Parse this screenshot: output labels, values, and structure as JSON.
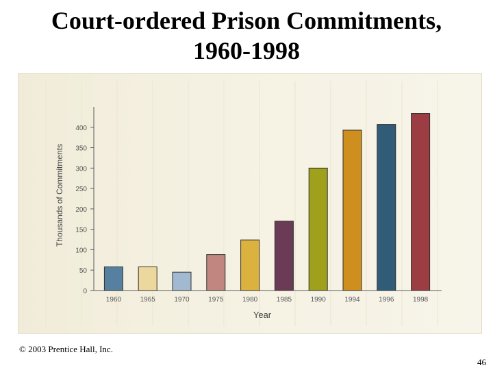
{
  "slide": {
    "title_line1": "Court-ordered Prison Commitments,",
    "title_line2": "1960-1998",
    "copyright": "© 2003 Prentice Hall, Inc.",
    "page_number": "46"
  },
  "chart_data": {
    "type": "bar",
    "title": "Court-ordered Prison Commitments, 1960-1998",
    "xlabel": "Year",
    "ylabel": "Thousands of Commitments",
    "categories": [
      "1960",
      "1965",
      "1970",
      "1975",
      "1980",
      "1985",
      "1990",
      "1994",
      "1996",
      "1998"
    ],
    "values": [
      58,
      58,
      45,
      88,
      124,
      170,
      300,
      393,
      407,
      434
    ],
    "ylim": [
      0,
      450
    ],
    "yticks": [
      0,
      50,
      100,
      150,
      200,
      250,
      300,
      350,
      400
    ],
    "ytick_labels": [
      "0",
      "50",
      "100",
      "150",
      "200",
      "250",
      "300",
      "350",
      "400"
    ],
    "bar_colors": [
      "#56809f",
      "#ecd89c",
      "#a2b9d2",
      "#c28680",
      "#dcb23e",
      "#6b3b56",
      "#9fa11c",
      "#cf8f1f",
      "#315c78",
      "#9c3d43"
    ],
    "grid": true,
    "legend": "none"
  }
}
